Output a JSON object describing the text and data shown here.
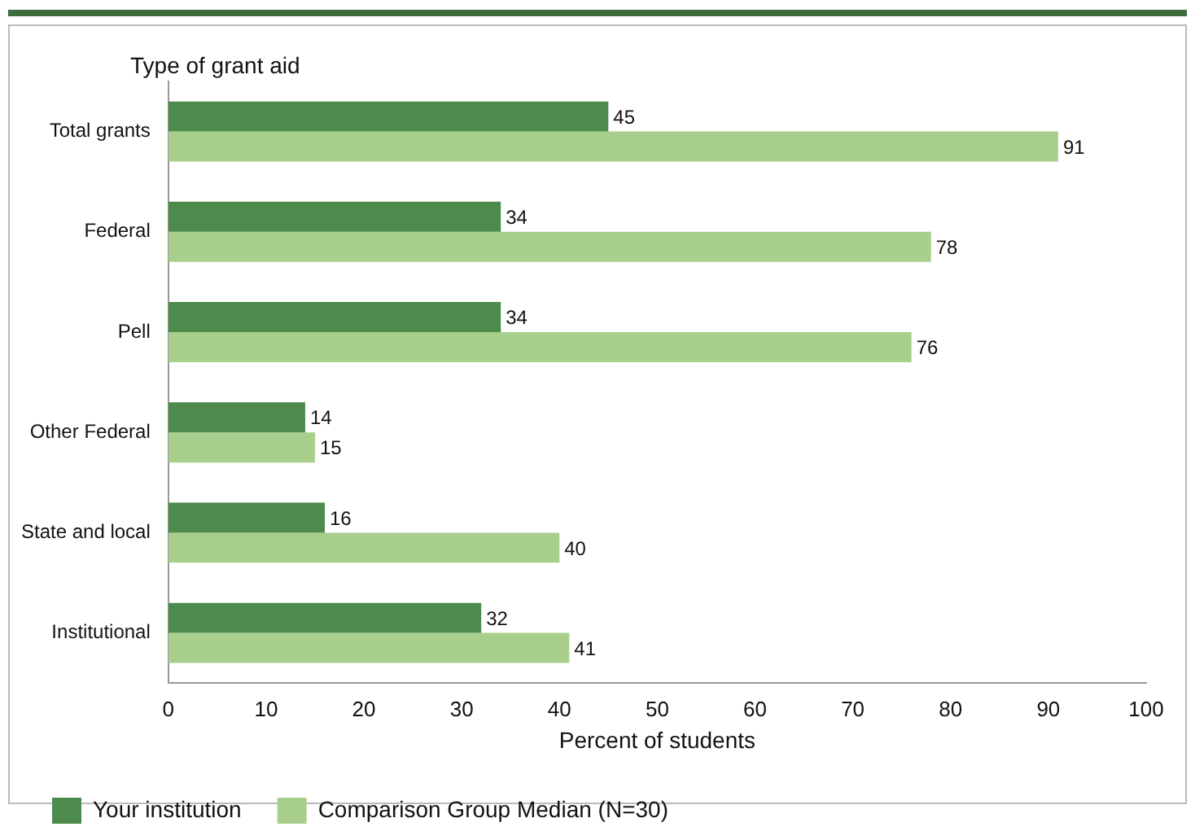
{
  "chart_data": {
    "type": "bar",
    "orientation": "horizontal",
    "ylabel": "Type of grant aid",
    "xlabel": "Percent of students",
    "categories": [
      "Total grants",
      "Federal",
      "Pell",
      "Other Federal",
      "State and local",
      "Institutional"
    ],
    "series": [
      {
        "name": "Your institution",
        "color": "#4d8b4d",
        "values": [
          45,
          34,
          34,
          14,
          16,
          32
        ]
      },
      {
        "name": "Comparison Group Median (N=30)",
        "color": "#a8cf8c",
        "values": [
          91,
          78,
          76,
          15,
          40,
          41
        ]
      }
    ],
    "xlim": [
      0,
      100
    ],
    "xticks": [
      0,
      10,
      20,
      30,
      40,
      50,
      60,
      70,
      80,
      90,
      100
    ],
    "grid": false,
    "legend": "bottom",
    "data_labels": true
  }
}
